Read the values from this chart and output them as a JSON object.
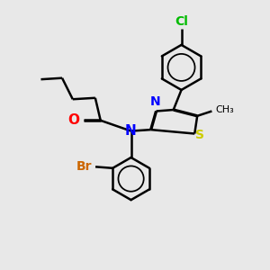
{
  "background_color": "#e8e8e8",
  "atom_colors": {
    "O": "#ff0000",
    "N": "#0000ff",
    "S": "#cccc00",
    "Br": "#cc6600",
    "Cl": "#00bb00",
    "C": "#000000"
  },
  "bond_width": 1.8,
  "font_size": 10,
  "methyl_font_size": 8
}
